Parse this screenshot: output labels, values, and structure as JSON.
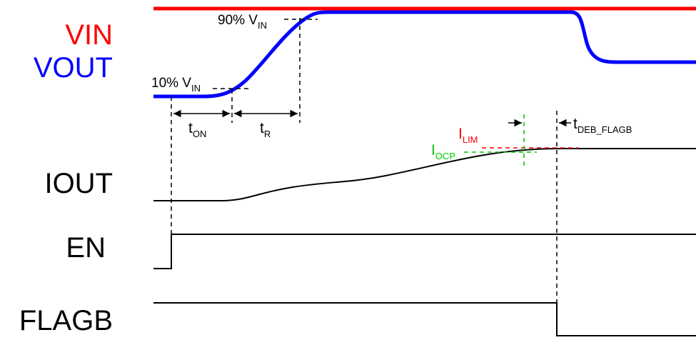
{
  "signals": {
    "vin": "VIN",
    "vout": "VOUT",
    "iout": "IOUT",
    "en": "EN",
    "flagb": "FLAGB"
  },
  "annotations": {
    "pct90": {
      "text": "90% V",
      "sub": "IN"
    },
    "pct10": {
      "text": "10% V",
      "sub": "IN"
    },
    "t_on": {
      "text": "t",
      "sub": "ON"
    },
    "t_r": {
      "text": "t",
      "sub": "R"
    },
    "i_lim": {
      "text": "I",
      "sub": "LIM"
    },
    "i_ocp": {
      "text": "I",
      "sub": "OCP"
    },
    "t_deb": {
      "text": "t",
      "sub": "DEB_FLAGB"
    }
  },
  "colors": {
    "vin": "#ff0000",
    "vout": "#0000ff",
    "ilim": "#ff0000",
    "iocp": "#00cc00",
    "trace": "#000000"
  }
}
